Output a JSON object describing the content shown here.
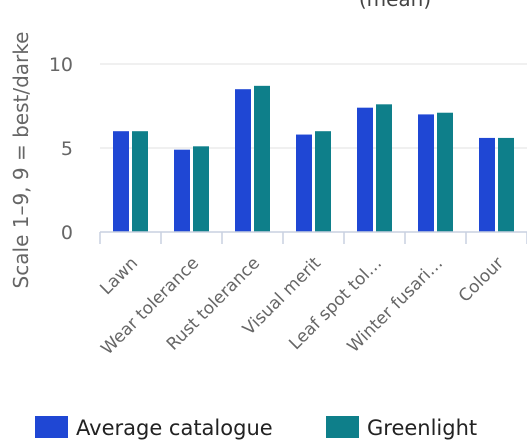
{
  "chart_data": {
    "type": "bar",
    "title": "(mean)",
    "ylabel": "Scale 1–9, 9 = best/darke",
    "xlabel": "",
    "ylim": [
      0,
      10
    ],
    "yticks": [
      0,
      5,
      10
    ],
    "grid": true,
    "legend_position": "bottom",
    "categories": [
      "Lawn",
      "Wear tolerance",
      "Rust tolerance",
      "Visual merit",
      "Leaf spot tol…",
      "Winter fusari…",
      "Colour"
    ],
    "series": [
      {
        "name": "Average catalogue",
        "color": "#1f47d4",
        "values": [
          6.0,
          4.9,
          8.5,
          5.8,
          7.4,
          7.0,
          5.6
        ]
      },
      {
        "name": "Greenlight",
        "color": "#0e7f8a",
        "values": [
          6.0,
          5.1,
          8.7,
          6.0,
          7.6,
          7.1,
          5.6
        ]
      }
    ]
  }
}
